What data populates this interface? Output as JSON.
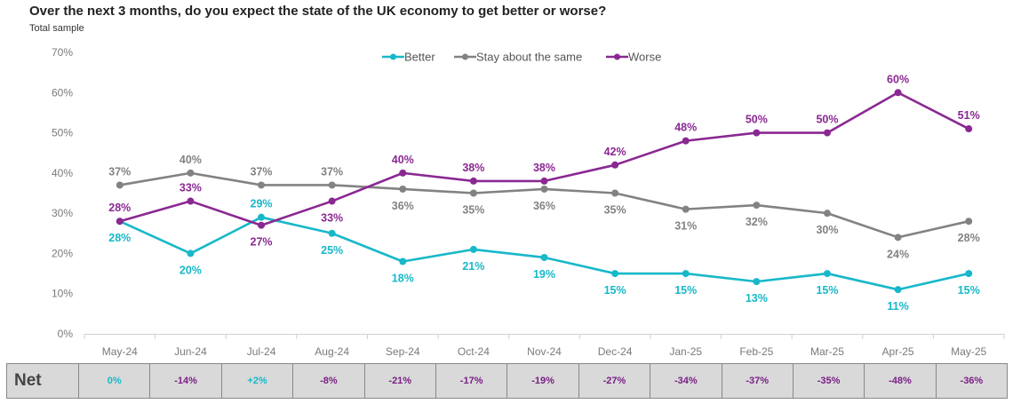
{
  "title": "Over the next 3 months, do you expect the state of the UK economy to get better or worse?",
  "subtitle": "Total sample",
  "colors": {
    "better": "#17b8c9",
    "same": "#828282",
    "worse": "#8a2892",
    "net_zero": "#17b8c9",
    "net_positive": "#17b8c9",
    "net_negative": "#7a1f85"
  },
  "chart_data": {
    "type": "line",
    "categories": [
      "May-24",
      "Jun-24",
      "Jul-24",
      "Aug-24",
      "Sep-24",
      "Oct-24",
      "Nov-24",
      "Dec-24",
      "Jan-25",
      "Feb-25",
      "Mar-25",
      "Apr-25",
      "May-25"
    ],
    "ylim": [
      0,
      70
    ],
    "yticks": [
      "0%",
      "10%",
      "20%",
      "30%",
      "40%",
      "50%",
      "60%",
      "70%"
    ],
    "legend_position": "top-center",
    "series": [
      {
        "name": "Better",
        "key": "better",
        "values": [
          28,
          20,
          29,
          25,
          18,
          21,
          19,
          15,
          15,
          13,
          15,
          11,
          15
        ],
        "labels": [
          "28%",
          "20%",
          "29%",
          "25%",
          "18%",
          "21%",
          "19%",
          "15%",
          "15%",
          "13%",
          "15%",
          "11%",
          "15%"
        ]
      },
      {
        "name": "Stay about the same",
        "key": "same",
        "values": [
          37,
          40,
          37,
          37,
          36,
          35,
          36,
          35,
          31,
          32,
          30,
          24,
          28
        ],
        "labels": [
          "37%",
          "40%",
          "37%",
          "37%",
          "36%",
          "35%",
          "36%",
          "35%",
          "31%",
          "32%",
          "30%",
          "24%",
          "28%"
        ]
      },
      {
        "name": "Worse",
        "key": "worse",
        "values": [
          28,
          33,
          27,
          33,
          40,
          38,
          38,
          42,
          48,
          50,
          50,
          60,
          51
        ],
        "labels": [
          "28%",
          "33%",
          "27%",
          "33%",
          "40%",
          "38%",
          "38%",
          "42%",
          "48%",
          "50%",
          "50%",
          "60%",
          "51%"
        ]
      }
    ]
  },
  "net": {
    "label": "Net",
    "values": [
      "0%",
      "-14%",
      "+2%",
      "-8%",
      "-21%",
      "-17%",
      "-19%",
      "-27%",
      "-34%",
      "-37%",
      "-35%",
      "-48%",
      "-36%"
    ]
  }
}
